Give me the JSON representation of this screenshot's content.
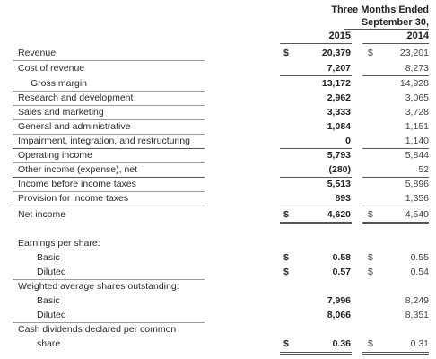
{
  "header": {
    "line1": "Three Months Ended",
    "line2": "September 30,",
    "year_current": "2015",
    "year_prior": "2014"
  },
  "rows": {
    "revenue": {
      "label": "Revenue",
      "cur_sym": "$",
      "cur": "20,379",
      "pri_sym": "$",
      "pri": "23,201"
    },
    "cost_of_revenue": {
      "label": "Cost of revenue",
      "cur": "7,207",
      "pri": "8,273"
    },
    "gross_margin": {
      "label": "Gross margin",
      "cur": "13,172",
      "pri": "14,928"
    },
    "rnd": {
      "label": "Research and development",
      "cur": "2,962",
      "pri": "3,065"
    },
    "sales_marketing": {
      "label": "Sales and marketing",
      "cur": "3,333",
      "pri": "3,728"
    },
    "gna": {
      "label": "General and administrative",
      "cur": "1,084",
      "pri": "1,151"
    },
    "impairment": {
      "label": "Impairment, integration, and restructuring",
      "cur": "0",
      "pri": "1,140"
    },
    "operating_income": {
      "label": "Operating income",
      "cur": "5,793",
      "pri": "5,844"
    },
    "other_income": {
      "label": "Other income (expense), net",
      "cur": "(280)",
      "pri": "52"
    },
    "income_before_tax": {
      "label": "Income before income taxes",
      "cur": "5,513",
      "pri": "5,896"
    },
    "provision_tax": {
      "label": "Provision for income taxes",
      "cur": "893",
      "pri": "1,356"
    },
    "net_income": {
      "label": "Net income",
      "cur_sym": "$",
      "cur": "4,620",
      "pri_sym": "$",
      "pri": "4,540"
    }
  },
  "eps": {
    "title": "Earnings per share:",
    "basic": {
      "label": "Basic",
      "cur_sym": "$",
      "cur": "0.58",
      "pri_sym": "$",
      "pri": "0.55"
    },
    "diluted": {
      "label": "Diluted",
      "cur_sym": "$",
      "cur": "0.57",
      "pri_sym": "$",
      "pri": "0.54"
    }
  },
  "shares": {
    "title": "Weighted average shares outstanding:",
    "basic": {
      "label": "Basic",
      "cur": "7,996",
      "pri": "8,249"
    },
    "diluted": {
      "label": "Diluted",
      "cur": "8,066",
      "pri": "8,351"
    }
  },
  "dividends": {
    "title": "Cash dividends declared per common",
    "label": "share",
    "cur_sym": "$",
    "cur": "0.36",
    "pri_sym": "$",
    "pri": "0.31"
  }
}
